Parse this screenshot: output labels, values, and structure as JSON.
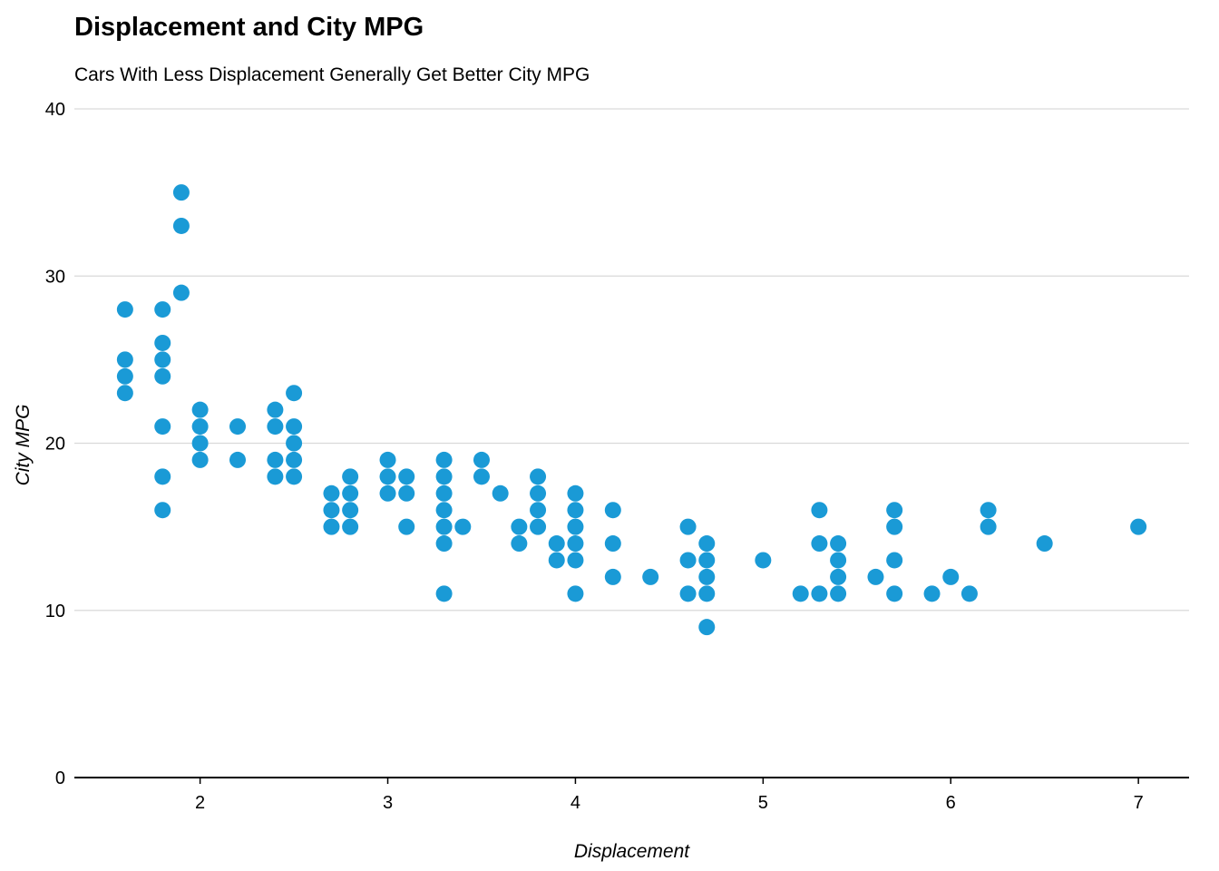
{
  "chart_data": {
    "type": "scatter",
    "title": "Displacement and City MPG",
    "subtitle": "Cars With Less Displacement Generally Get Better City MPG",
    "xlabel": "Displacement",
    "ylabel": "City MPG",
    "xlim": [
      1.33,
      7.27
    ],
    "ylim": [
      0,
      40
    ],
    "x_ticks": [
      2,
      3,
      4,
      5,
      6,
      7
    ],
    "y_ticks": [
      0,
      10,
      20,
      30,
      40
    ],
    "grid": "horizontal",
    "point_color": "#1a9ad6",
    "series": [
      {
        "points": [
          [
            1.6,
            28
          ],
          [
            1.6,
            25
          ],
          [
            1.6,
            24
          ],
          [
            1.6,
            23
          ],
          [
            1.8,
            28
          ],
          [
            1.8,
            26
          ],
          [
            1.8,
            25
          ],
          [
            1.8,
            24
          ],
          [
            1.8,
            21
          ],
          [
            1.8,
            18
          ],
          [
            1.8,
            16
          ],
          [
            1.9,
            35
          ],
          [
            1.9,
            33
          ],
          [
            1.9,
            29
          ],
          [
            2.0,
            22
          ],
          [
            2.0,
            21
          ],
          [
            2.0,
            20
          ],
          [
            2.0,
            19
          ],
          [
            2.2,
            21
          ],
          [
            2.2,
            19
          ],
          [
            2.4,
            22
          ],
          [
            2.4,
            21
          ],
          [
            2.4,
            19
          ],
          [
            2.4,
            18
          ],
          [
            2.5,
            23
          ],
          [
            2.5,
            21
          ],
          [
            2.5,
            20
          ],
          [
            2.5,
            19
          ],
          [
            2.5,
            18
          ],
          [
            2.7,
            17
          ],
          [
            2.7,
            16
          ],
          [
            2.7,
            15
          ],
          [
            2.8,
            18
          ],
          [
            2.8,
            17
          ],
          [
            2.8,
            16
          ],
          [
            2.8,
            15
          ],
          [
            3.0,
            19
          ],
          [
            3.0,
            18
          ],
          [
            3.0,
            17
          ],
          [
            3.1,
            18
          ],
          [
            3.1,
            17
          ],
          [
            3.1,
            15
          ],
          [
            3.3,
            19
          ],
          [
            3.3,
            18
          ],
          [
            3.3,
            17
          ],
          [
            3.3,
            16
          ],
          [
            3.3,
            15
          ],
          [
            3.3,
            14
          ],
          [
            3.3,
            11
          ],
          [
            3.4,
            15
          ],
          [
            3.5,
            19
          ],
          [
            3.5,
            18
          ],
          [
            3.6,
            17
          ],
          [
            3.7,
            15
          ],
          [
            3.7,
            14
          ],
          [
            3.8,
            18
          ],
          [
            3.8,
            17
          ],
          [
            3.8,
            16
          ],
          [
            3.8,
            15
          ],
          [
            3.9,
            14
          ],
          [
            3.9,
            13
          ],
          [
            4.0,
            17
          ],
          [
            4.0,
            16
          ],
          [
            4.0,
            15
          ],
          [
            4.0,
            14
          ],
          [
            4.0,
            13
          ],
          [
            4.0,
            11
          ],
          [
            4.2,
            16
          ],
          [
            4.2,
            14
          ],
          [
            4.2,
            12
          ],
          [
            4.4,
            12
          ],
          [
            4.6,
            15
          ],
          [
            4.6,
            13
          ],
          [
            4.6,
            11
          ],
          [
            4.7,
            14
          ],
          [
            4.7,
            13
          ],
          [
            4.7,
            12
          ],
          [
            4.7,
            11
          ],
          [
            4.7,
            9
          ],
          [
            5.0,
            13
          ],
          [
            5.2,
            11
          ],
          [
            5.3,
            16
          ],
          [
            5.3,
            14
          ],
          [
            5.3,
            11
          ],
          [
            5.4,
            14
          ],
          [
            5.4,
            13
          ],
          [
            5.4,
            12
          ],
          [
            5.4,
            11
          ],
          [
            5.6,
            12
          ],
          [
            5.7,
            16
          ],
          [
            5.7,
            15
          ],
          [
            5.7,
            13
          ],
          [
            5.7,
            11
          ],
          [
            5.9,
            11
          ],
          [
            6.0,
            12
          ],
          [
            6.1,
            11
          ],
          [
            6.2,
            16
          ],
          [
            6.2,
            15
          ],
          [
            6.5,
            14
          ],
          [
            7.0,
            15
          ]
        ]
      }
    ]
  }
}
